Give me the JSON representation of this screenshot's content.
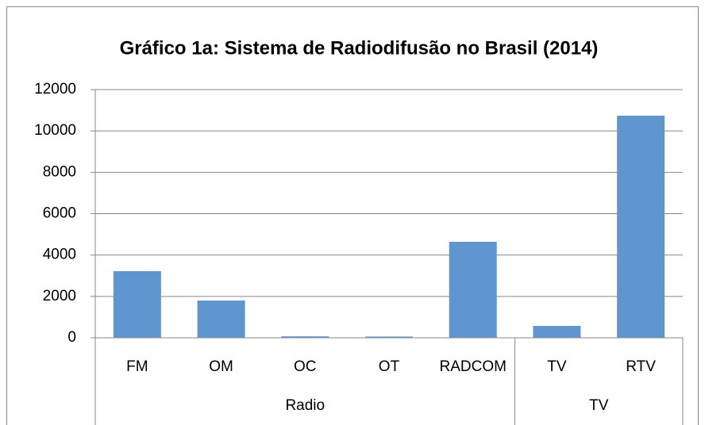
{
  "chart_data": {
    "type": "bar",
    "title": "Gráfico 1a: Sistema de Radiodifusão no Brasil (2014)",
    "categories": [
      "FM",
      "OM",
      "OC",
      "OT",
      "RADCOM",
      "TV",
      "RTV"
    ],
    "groups": [
      {
        "name": "Radio",
        "span": 5
      },
      {
        "name": "TV",
        "span": 2
      }
    ],
    "values": [
      3220,
      1800,
      70,
      60,
      4640,
      575,
      10740
    ],
    "color": "#6096cf",
    "ylim": [
      0,
      12000
    ],
    "yticks": [
      0,
      2000,
      4000,
      6000,
      8000,
      10000,
      12000
    ],
    "grid": true
  }
}
